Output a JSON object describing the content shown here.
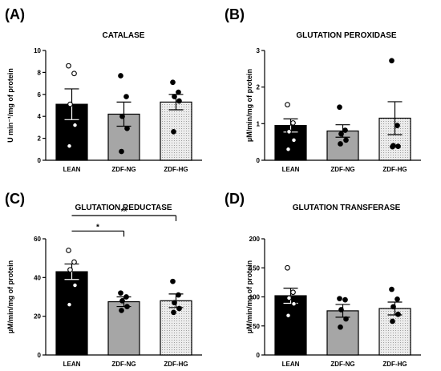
{
  "colors": {
    "lean": "#000000",
    "ng": "#a6a6a6",
    "hg": "#e6e6e6",
    "axis": "#000000"
  },
  "chart_data": [
    {
      "panel": "(A)",
      "type": "bar",
      "title": "CATALASE",
      "ylabel": "U min⁻¹/mg of protein",
      "categories": [
        "LEAN",
        "ZDF-NG",
        "ZDF-HG"
      ],
      "values": [
        5.1,
        4.2,
        5.3
      ],
      "sem": [
        1.4,
        1.1,
        0.7
      ],
      "points": [
        [
          8.6,
          7.9,
          5.1,
          3.2,
          1.3
        ],
        [
          7.7,
          5.8,
          4.0,
          2.9,
          0.8
        ],
        [
          7.1,
          6.2,
          5.8,
          5.4,
          2.6
        ]
      ],
      "ylim": [
        0,
        10
      ],
      "yticks": [
        0,
        2,
        4,
        6,
        8,
        10
      ],
      "significance": []
    },
    {
      "panel": "(B)",
      "type": "bar",
      "title": "GLUTATION PEROXIDASE",
      "ylabel": "µM/min/mg of protein",
      "categories": [
        "LEAN",
        "ZDF-NG",
        "ZDF-HG"
      ],
      "values": [
        0.95,
        0.8,
        1.15
      ],
      "sem": [
        0.18,
        0.17,
        0.45
      ],
      "points": [
        [
          1.52,
          1.02,
          0.78,
          0.55,
          0.3
        ],
        [
          1.45,
          0.82,
          0.72,
          0.55,
          0.45
        ],
        [
          2.72,
          0.95,
          0.4,
          0.38,
          0.37
        ]
      ],
      "ylim": [
        0,
        3
      ],
      "yticks": [
        0,
        1,
        2,
        3
      ],
      "significance": []
    },
    {
      "panel": "(C)",
      "type": "bar",
      "title": "GLUTATION REDUCTASE",
      "ylabel": "µM/min/mg of protein",
      "categories": [
        "LEAN",
        "ZDF-NG",
        "ZDF-HG"
      ],
      "values": [
        43,
        27.5,
        28
      ],
      "sem": [
        4,
        2.5,
        3.5
      ],
      "points": [
        [
          54,
          48,
          44,
          36,
          26
        ],
        [
          32,
          30,
          28,
          25,
          23
        ],
        [
          38,
          31,
          27,
          24,
          22
        ]
      ],
      "ylim": [
        0,
        60
      ],
      "yticks": [
        0,
        20,
        40,
        60
      ],
      "significance": [
        {
          "from": 0,
          "to": 1,
          "label": "*",
          "y": 64
        },
        {
          "from": 0,
          "to": 2,
          "label": "**",
          "y": 72
        }
      ]
    },
    {
      "panel": "(D)",
      "type": "bar",
      "title": "GLUTATION TRANSFERASE",
      "ylabel": "µM/min/mg of protein",
      "categories": [
        "LEAN",
        "ZDF-NG",
        "ZDF-HG"
      ],
      "values": [
        102,
        76,
        80
      ],
      "sem": [
        13,
        11,
        11
      ],
      "points": [
        [
          150,
          108,
          98,
          88,
          68
        ],
        [
          97,
          95,
          78,
          62,
          48
        ],
        [
          113,
          96,
          83,
          70,
          58
        ]
      ],
      "ylim": [
        0,
        200
      ],
      "yticks": [
        0,
        50,
        100,
        150,
        200
      ],
      "significance": []
    }
  ]
}
